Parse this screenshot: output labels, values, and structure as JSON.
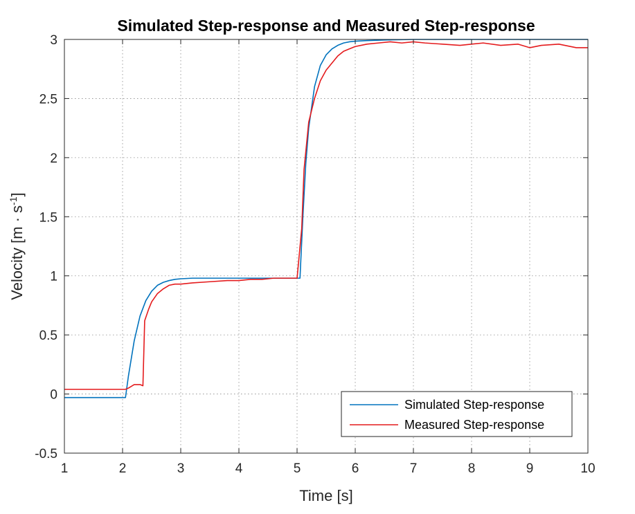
{
  "chart_data": {
    "type": "line",
    "title": "Simulated Step-response and Measured Step-response",
    "xlabel": "Time [s]",
    "ylabel_parts": {
      "main": "Velocity [m · s",
      "sup": "-1",
      "close": "]"
    },
    "xlim": [
      1,
      10
    ],
    "ylim": [
      -0.5,
      3
    ],
    "xticks": [
      1,
      2,
      3,
      4,
      5,
      6,
      7,
      8,
      9,
      10
    ],
    "yticks": [
      -0.5,
      0,
      0.5,
      1,
      1.5,
      2,
      2.5,
      3
    ],
    "xtick_labels": [
      "1",
      "2",
      "3",
      "4",
      "5",
      "6",
      "7",
      "8",
      "9",
      "10"
    ],
    "ytick_labels": [
      "-0.5",
      "0",
      "0.5",
      "1",
      "1.5",
      "2",
      "2.5",
      "3"
    ],
    "grid": true,
    "legend_position": "bottom-right",
    "series": [
      {
        "name": "Simulated Step-response",
        "color": "#0072BD",
        "x": [
          1.0,
          2.05,
          2.1,
          2.2,
          2.3,
          2.4,
          2.5,
          2.6,
          2.7,
          2.8,
          2.9,
          3.0,
          3.2,
          3.5,
          4.0,
          4.5,
          5.05,
          5.1,
          5.15,
          5.2,
          5.3,
          5.4,
          5.5,
          5.6,
          5.7,
          5.8,
          5.9,
          6.0,
          6.2,
          6.5,
          7.0,
          8.0,
          10.0
        ],
        "y": [
          -0.03,
          -0.03,
          0.15,
          0.45,
          0.66,
          0.79,
          0.87,
          0.92,
          0.945,
          0.96,
          0.97,
          0.975,
          0.98,
          0.98,
          0.98,
          0.98,
          0.98,
          1.5,
          1.95,
          2.25,
          2.6,
          2.78,
          2.87,
          2.92,
          2.95,
          2.97,
          2.98,
          2.985,
          2.99,
          2.995,
          3.0,
          3.0,
          3.0
        ]
      },
      {
        "name": "Measured Step-response",
        "color": "#E41A1C",
        "x": [
          1.0,
          2.05,
          2.1,
          2.2,
          2.3,
          2.35,
          2.38,
          2.45,
          2.5,
          2.6,
          2.7,
          2.8,
          2.9,
          3.0,
          3.2,
          3.5,
          3.8,
          4.0,
          4.2,
          4.4,
          4.6,
          4.8,
          5.0,
          5.08,
          5.12,
          5.2,
          5.3,
          5.4,
          5.5,
          5.6,
          5.7,
          5.8,
          5.9,
          6.0,
          6.1,
          6.2,
          6.4,
          6.6,
          6.8,
          7.0,
          7.2,
          7.5,
          7.8,
          8.0,
          8.2,
          8.5,
          8.8,
          9.0,
          9.2,
          9.5,
          9.8,
          10.0
        ],
        "y": [
          0.04,
          0.04,
          0.05,
          0.08,
          0.08,
          0.07,
          0.62,
          0.72,
          0.78,
          0.85,
          0.89,
          0.92,
          0.93,
          0.93,
          0.94,
          0.95,
          0.96,
          0.96,
          0.97,
          0.97,
          0.98,
          0.98,
          0.98,
          1.4,
          1.9,
          2.3,
          2.5,
          2.65,
          2.74,
          2.8,
          2.86,
          2.9,
          2.92,
          2.94,
          2.95,
          2.96,
          2.97,
          2.98,
          2.97,
          2.98,
          2.97,
          2.96,
          2.95,
          2.96,
          2.97,
          2.95,
          2.96,
          2.93,
          2.95,
          2.96,
          2.93,
          2.93
        ]
      }
    ]
  }
}
